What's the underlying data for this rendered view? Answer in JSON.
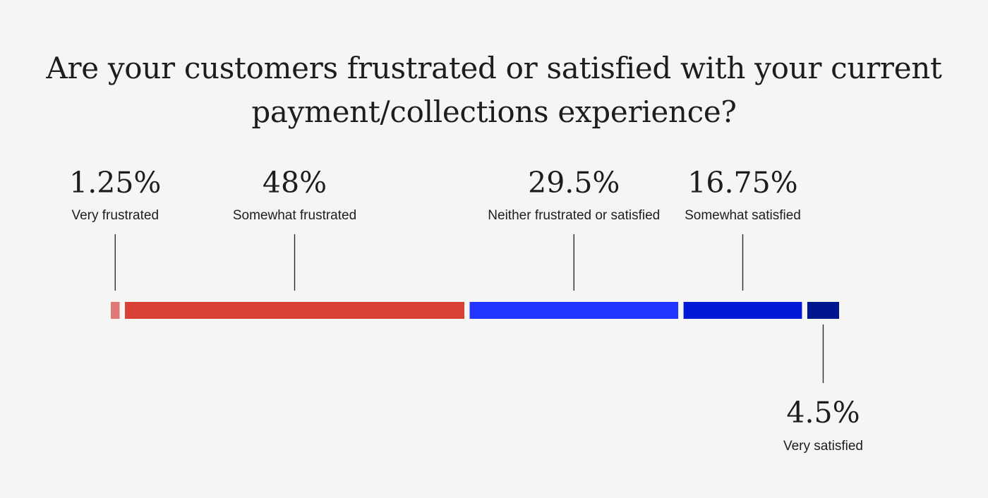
{
  "chart_data": {
    "type": "bar",
    "orientation": "horizontal-stacked",
    "title_lines": [
      "Are your customers frustrated or satisfied with your current",
      "payment/collections experience?"
    ],
    "unit": "%",
    "segments": [
      {
        "label": "Very frustrated",
        "value": 1.25,
        "display": "1.25%",
        "color": "#e07a76",
        "callout": "above"
      },
      {
        "label": "Somewhat frustrated",
        "value": 48,
        "display": "48%",
        "color": "#d94035",
        "callout": "above"
      },
      {
        "label": "Neither frustrated or satisfied",
        "value": 29.5,
        "display": "29.5%",
        "color": "#2236ff",
        "callout": "above"
      },
      {
        "label": "Somewhat satisfied",
        "value": 16.75,
        "display": "16.75%",
        "color": "#0019d6",
        "callout": "above"
      },
      {
        "label": "Very satisfied",
        "value": 4.5,
        "display": "4.5%",
        "color": "#00168f",
        "callout": "below"
      }
    ]
  }
}
